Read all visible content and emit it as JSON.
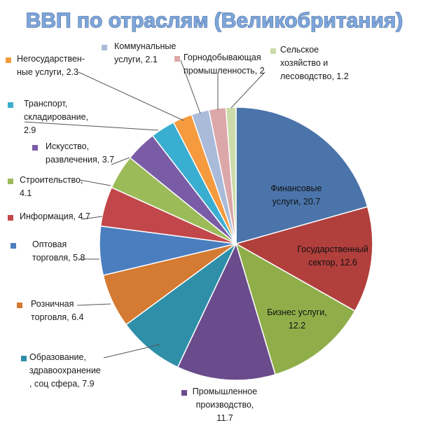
{
  "chart_data": {
    "type": "pie",
    "title": "ВВП по отраслям (Великобритания)",
    "slices": [
      {
        "label": [
          "Финансовые",
          "услуги, 20.7"
        ],
        "value": 20.7,
        "color": "#4a74aa"
      },
      {
        "label": [
          "Государственный",
          "сектор, 12.6"
        ],
        "value": 12.6,
        "color": "#b13f3c"
      },
      {
        "label": [
          "Бизнес услуги,",
          "12.2"
        ],
        "value": 12.2,
        "color": "#8fae4a"
      },
      {
        "label": [
          "Промышленное",
          "производство,",
          "11.7"
        ],
        "value": 11.7,
        "color": "#6a4b8c"
      },
      {
        "label": [
          "Образование,",
          "здравоохранение",
          ", соц сфера, 7.9"
        ],
        "value": 7.9,
        "color": "#2f8fa8"
      },
      {
        "label": [
          "Розничная",
          "торговля, 6.4"
        ],
        "value": 6.4,
        "color": "#d47a32"
      },
      {
        "label": [
          "Оптовая",
          "торговля, 5.8"
        ],
        "value": 5.8,
        "color": "#4a7ebf"
      },
      {
        "label": [
          "Информация, 4.7"
        ],
        "value": 4.7,
        "color": "#c2474a"
      },
      {
        "label": [
          "Строительство,",
          "4.1"
        ],
        "value": 4.1,
        "color": "#9bbb59"
      },
      {
        "label": [
          "Искусство,",
          "развлечения, 3.7"
        ],
        "value": 3.7,
        "color": "#7a5ca6"
      },
      {
        "label": [
          "Транспорт,",
          "складирование,",
          "2.9"
        ],
        "value": 2.9,
        "color": "#3aaed0"
      },
      {
        "label": [
          "Негосударствен-",
          "ные услуги, 2.3"
        ],
        "value": 2.3,
        "color": "#f59a3f"
      },
      {
        "label": [
          "Коммунальные",
          "услуги, 2.1"
        ],
        "value": 2.1,
        "color": "#a9bbd8"
      },
      {
        "label": [
          "Горнодобывающая",
          "промышленность, 2"
        ],
        "value": 2.0,
        "color": "#dca7a9"
      },
      {
        "label": [
          "Сельское",
          "хозяйство и",
          "лесоводство, 1.2"
        ],
        "value": 1.2,
        "color": "#cbdcaa"
      }
    ]
  }
}
